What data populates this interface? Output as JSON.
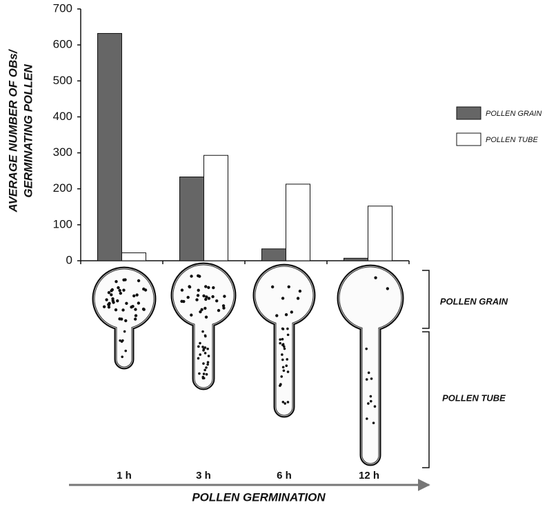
{
  "chart_data": {
    "type": "bar",
    "y_label_lines": [
      "AVERAGE NUMBER OF OBs/",
      "GERMINATING POLLEN"
    ],
    "x_label": "POLLEN GERMINATION",
    "categories": [
      "1 h",
      "3 h",
      "6 h",
      "12 h"
    ],
    "series": [
      {
        "name": "POLLEN GRAIN",
        "color": "#666666",
        "values": [
          632,
          233,
          33,
          7
        ]
      },
      {
        "name": "POLLEN TUBE",
        "color": "#ffffff",
        "values": [
          22,
          293,
          213,
          152
        ]
      }
    ],
    "annotations": [
      "POLLEN GRAIN",
      "POLLEN TUBE"
    ],
    "ylim": [
      0,
      700
    ],
    "yticks": [
      0,
      100,
      200,
      300,
      400,
      500,
      600,
      700
    ],
    "grid": false
  }
}
